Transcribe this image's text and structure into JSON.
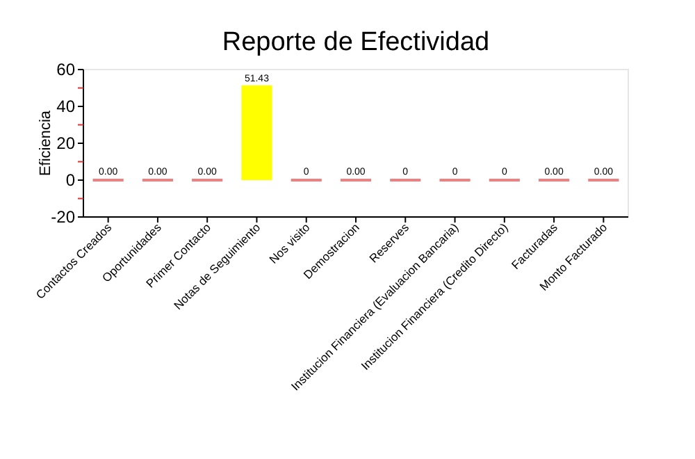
{
  "chart_data": {
    "type": "bar",
    "title": "Reporte de Efectividad",
    "ylabel": "Eficiencia",
    "categories": [
      "Contactos Creados",
      "Oportunidades",
      "Primer Contacto",
      "Notas de Seguimiento",
      "Nos visito",
      "Demostracion",
      "Reserves",
      "Institucion Financiera (Evaluacion Bancaria)",
      "Institucion Financiera (Credito Directo)",
      "Facturadas",
      "Monto Facturado"
    ],
    "values": [
      0,
      0,
      0,
      51.43,
      0,
      0,
      0,
      0,
      0,
      0,
      0
    ],
    "colors": [
      "#f08080",
      "#f08080",
      "#f08080",
      "#ffff00",
      "#f08080",
      "#f08080",
      "#f08080",
      "#f08080",
      "#f08080",
      "#f08080",
      "#f08080"
    ],
    "value_labels": [
      "0.00",
      "0.00",
      "0.00",
      "51.43",
      "0",
      "0.00",
      "0",
      "0",
      "0",
      "0.00",
      "0.00"
    ],
    "ylim": [
      -20,
      60
    ],
    "yticks": [
      -20,
      {
        "value": -10,
        "label": null
      },
      0,
      {
        "value": 10,
        "label": null
      },
      20,
      {
        "value": 30,
        "label": null
      },
      40,
      {
        "value": 50,
        "label": null
      },
      60
    ],
    "grid": false
  }
}
